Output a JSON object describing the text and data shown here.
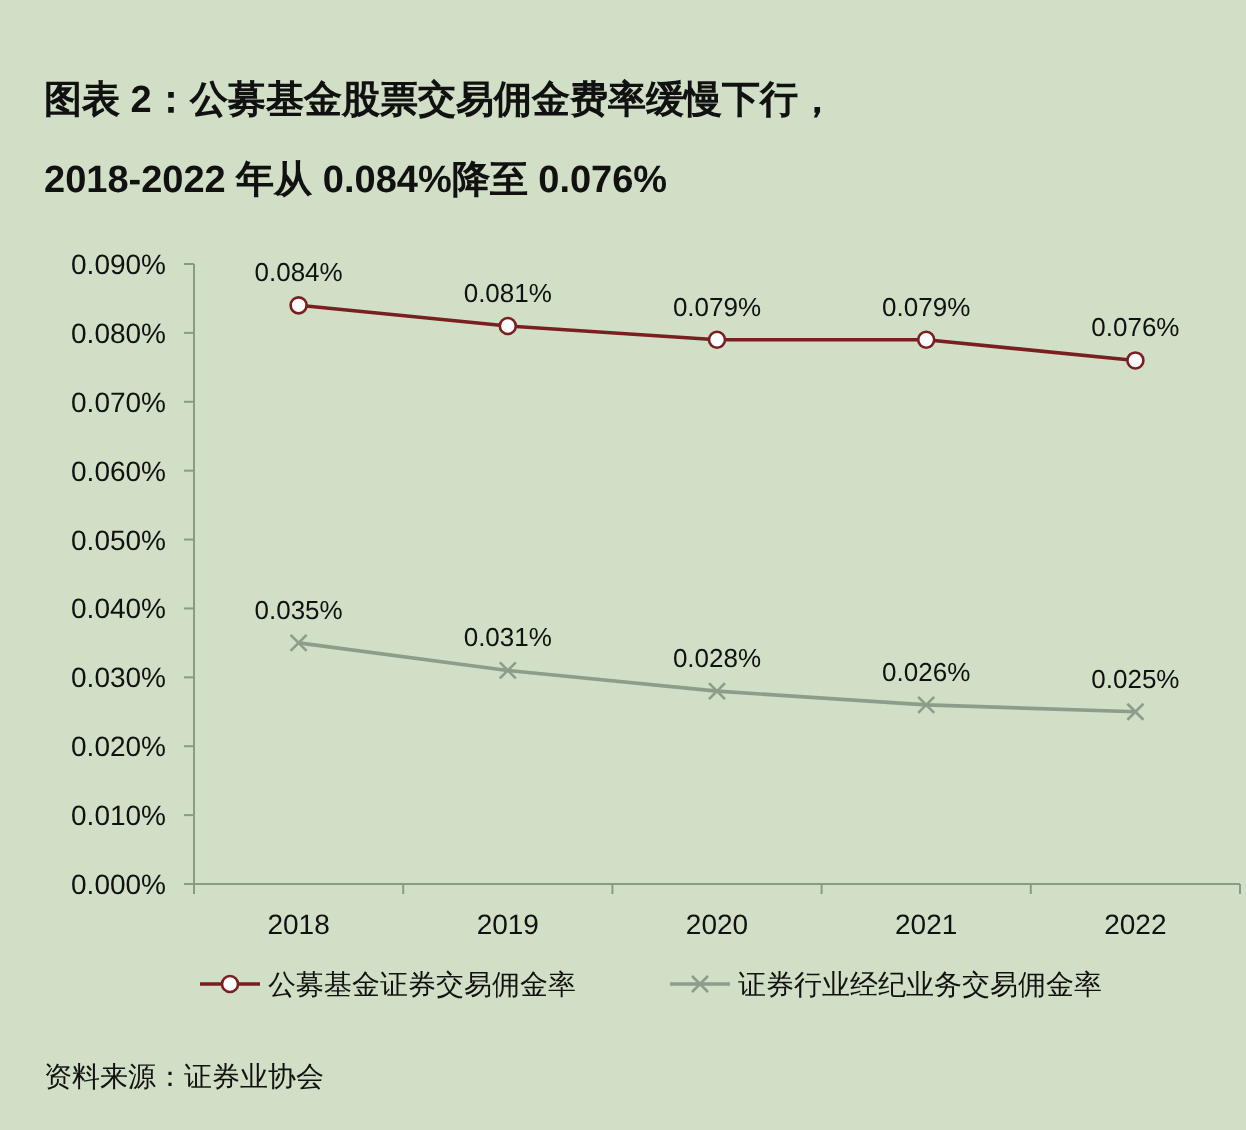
{
  "chart_data": {
    "type": "line",
    "title": "图表 2：公募基金股票交易佣金费率缓慢下行，",
    "subtitle": "2018-2022 年从 0.084%降至 0.076%",
    "categories": [
      "2018",
      "2019",
      "2020",
      "2021",
      "2022"
    ],
    "series": [
      {
        "name": "公募基金证券交易佣金率",
        "color": "#7a1f1f",
        "marker": "circle",
        "values": [
          0.084,
          0.081,
          0.079,
          0.079,
          0.076
        ],
        "value_labels": [
          "0.084%",
          "0.081%",
          "0.079%",
          "0.079%",
          "0.076%"
        ]
      },
      {
        "name": "证券行业经纪业务交易佣金率",
        "color": "#8e9c8c",
        "marker": "cross",
        "values": [
          0.035,
          0.031,
          0.028,
          0.026,
          0.025
        ],
        "value_labels": [
          "0.035%",
          "0.031%",
          "0.028%",
          "0.026%",
          "0.025%"
        ]
      }
    ],
    "ylim": [
      0,
      0.09
    ],
    "yticks": [
      {
        "value": 0,
        "label": "0.000%"
      },
      {
        "value": 0.01,
        "label": "0.010%"
      },
      {
        "value": 0.02,
        "label": "0.020%"
      },
      {
        "value": 0.03,
        "label": "0.030%"
      },
      {
        "value": 0.04,
        "label": "0.040%"
      },
      {
        "value": 0.05,
        "label": "0.050%"
      },
      {
        "value": 0.06,
        "label": "0.060%"
      },
      {
        "value": 0.07,
        "label": "0.070%"
      },
      {
        "value": 0.08,
        "label": "0.080%"
      },
      {
        "value": 0.09,
        "label": "0.090%"
      }
    ],
    "legend": "bottom",
    "grid": false,
    "annotations": [
      "资料来源：证券业协会"
    ]
  }
}
